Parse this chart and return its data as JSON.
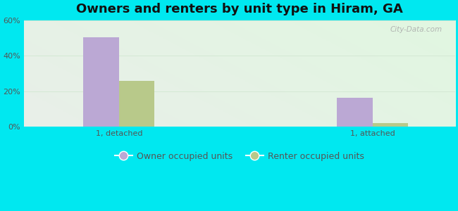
{
  "title": "Owners and renters by unit type in Hiram, GA",
  "groups": [
    "1, detached",
    "1, attached"
  ],
  "series": [
    {
      "label": "Owner occupied units",
      "values": [
        50.5,
        16.2
      ],
      "color": "#bba8d4"
    },
    {
      "label": "Renter occupied units",
      "values": [
        26.0,
        2.0
      ],
      "color": "#b8c98a"
    }
  ],
  "ylim": [
    0,
    60
  ],
  "yticks": [
    0,
    20,
    40,
    60
  ],
  "ytick_labels": [
    "0%",
    "20%",
    "40%",
    "60%"
  ],
  "bar_width": 0.28,
  "outer_bg": "#00e8f0",
  "grid_color": "#d4e8d4",
  "title_fontsize": 13,
  "legend_fontsize": 9,
  "tick_fontsize": 8,
  "watermark": "City-Data.com"
}
